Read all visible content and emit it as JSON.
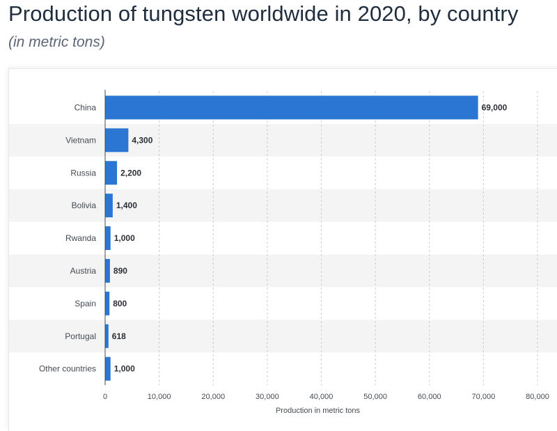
{
  "title": "Production of tungsten worldwide in 2020, by country",
  "subtitle": "(in metric tons)",
  "colors": {
    "bar": "#2a76d2",
    "band": "#f4f4f4",
    "grid": "#c8ccd2",
    "axis": "#444a52"
  },
  "chart_data": {
    "type": "bar",
    "orientation": "horizontal",
    "categories": [
      "China",
      "Vietnam",
      "Russia",
      "Bolivia",
      "Rwanda",
      "Austria",
      "Spain",
      "Portugal",
      "Other countries"
    ],
    "values": [
      69000,
      4300,
      2200,
      1400,
      1000,
      890,
      800,
      618,
      1000
    ],
    "value_labels": [
      "69,000",
      "4,300",
      "2,200",
      "1,400",
      "1,000",
      "890",
      "800",
      "618",
      "1,000"
    ],
    "xlabel": "Production in metric tons",
    "xlim": [
      0,
      80000
    ],
    "xticks": [
      0,
      10000,
      20000,
      30000,
      40000,
      50000,
      60000,
      70000,
      80000
    ],
    "xtick_labels": [
      "0",
      "10,000",
      "20,000",
      "30,000",
      "40,000",
      "50,000",
      "60,000",
      "70,000",
      "80,000"
    ],
    "grid": "vertical dashed",
    "legend": "none"
  }
}
